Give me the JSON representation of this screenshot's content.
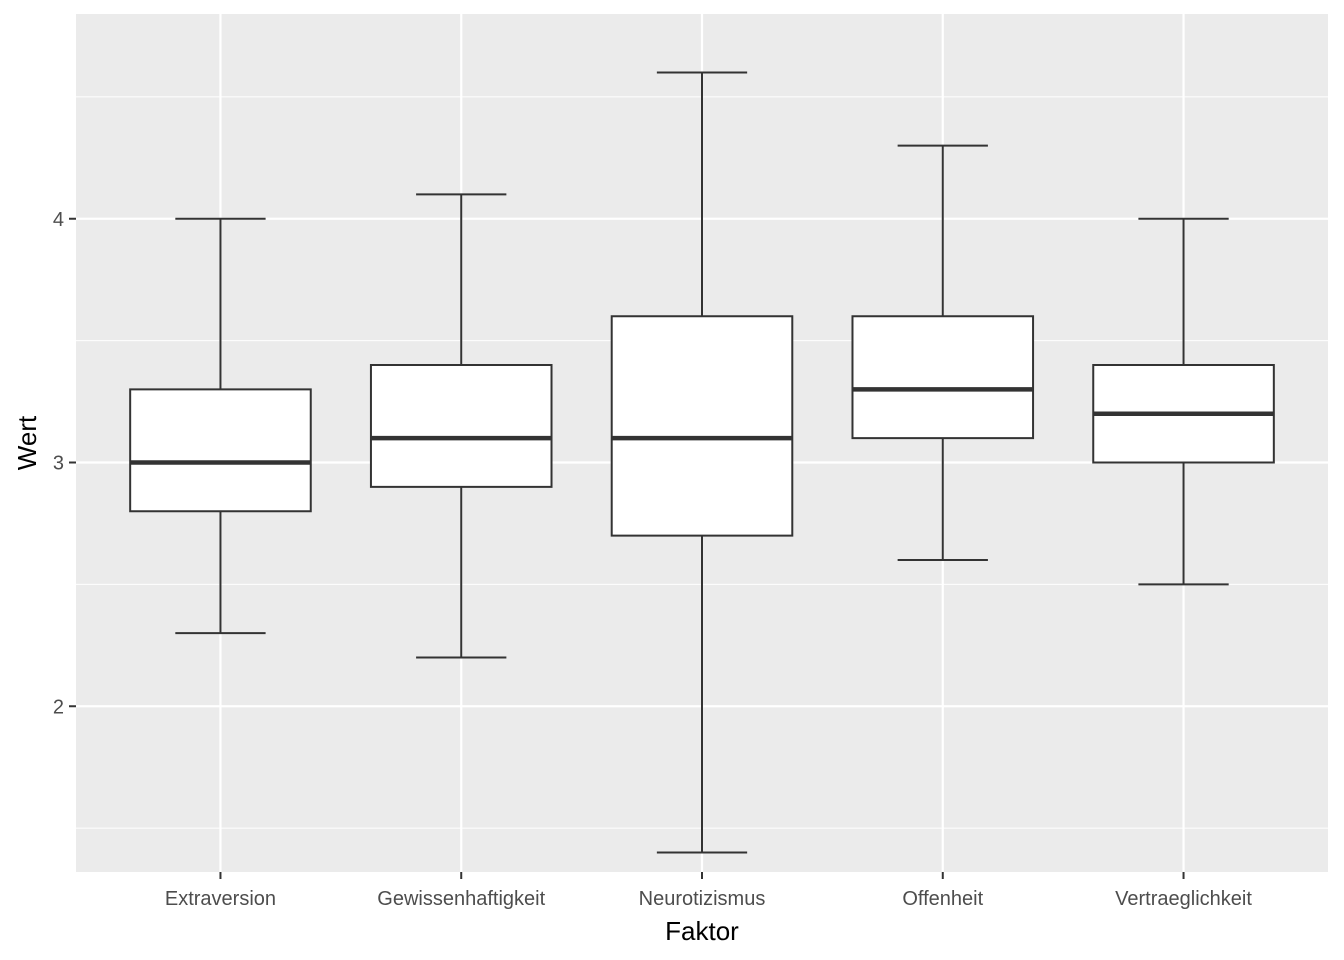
{
  "chart_data": {
    "type": "boxplot",
    "xlabel": "Faktor",
    "ylabel": "Wert",
    "ylim": [
      1.32,
      4.84
    ],
    "yticks": [
      2,
      3,
      4
    ],
    "ytick_labels": [
      "2",
      "3",
      "4"
    ],
    "grid": true,
    "categories": [
      "Extraversion",
      "Gewissenhaftigkeit",
      "Neurotizismus",
      "Offenheit",
      "Vertraeglichkeit"
    ],
    "boxes": [
      {
        "category": "Extraversion",
        "whisker_low": 2.3,
        "q1": 2.8,
        "median": 3.0,
        "q3": 3.3,
        "whisker_high": 4.0
      },
      {
        "category": "Gewissenhaftigkeit",
        "whisker_low": 2.2,
        "q1": 2.9,
        "median": 3.1,
        "q3": 3.4,
        "whisker_high": 4.1
      },
      {
        "category": "Neurotizismus",
        "whisker_low": 1.4,
        "q1": 2.7,
        "median": 3.1,
        "q3": 3.6,
        "whisker_high": 4.6
      },
      {
        "category": "Offenheit",
        "whisker_low": 2.6,
        "q1": 3.1,
        "median": 3.3,
        "q3": 3.6,
        "whisker_high": 4.3
      },
      {
        "category": "Vertraeglichkeit",
        "whisker_low": 2.5,
        "q1": 3.0,
        "median": 3.2,
        "q3": 3.4,
        "whisker_high": 4.0
      }
    ],
    "colors": {
      "panel": "#ebebeb",
      "grid": "#ffffff",
      "box_fill": "#ffffff",
      "box_line": "#333333",
      "tick": "#333333"
    }
  }
}
